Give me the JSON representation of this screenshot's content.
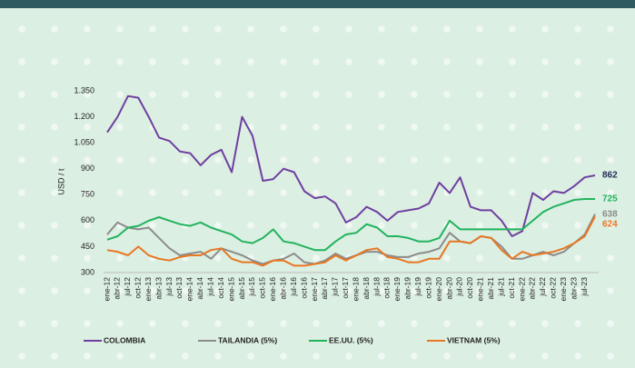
{
  "chart_data": {
    "type": "line",
    "y_label": "USD / t",
    "categories": [
      "ene-12",
      "abr-12",
      "jul-12",
      "oct-12",
      "ene-13",
      "abr-13",
      "jul-13",
      "oct-13",
      "ene-14",
      "abr-14",
      "jul-14",
      "oct-14",
      "ene-15",
      "abr-15",
      "jul-15",
      "oct-15",
      "ene-16",
      "abr-16",
      "jul-16",
      "oct-16",
      "ene-17",
      "abr-17",
      "jul-17",
      "oct-17",
      "ene-18",
      "abr-18",
      "jul-18",
      "oct-18",
      "ene-19",
      "abr-19",
      "jul-19",
      "oct-19",
      "ene-20",
      "abr-20",
      "jul-20",
      "oct-20",
      "ene-21",
      "abr-21",
      "jul-21",
      "oct-21",
      "ene-22",
      "abr-22",
      "jul-22",
      "oct-22",
      "ene-23",
      "abr-23",
      "jul-23",
      null
    ],
    "ylim": [
      300,
      1350
    ],
    "yticks": [
      300,
      450,
      600,
      750,
      900,
      {
        "value": 1050,
        "label": "1.050"
      },
      {
        "value": 1200,
        "label": "1.200"
      },
      {
        "value": 1350,
        "label": "1.350"
      }
    ],
    "series": [
      {
        "name": "COLOMBIA",
        "color": "#6f3fa0",
        "label_color": "#1f2d5a",
        "values": [
          1110,
          1200,
          1320,
          1310,
          1200,
          1080,
          1060,
          1000,
          990,
          920,
          980,
          1010,
          880,
          1200,
          1090,
          830,
          840,
          900,
          880,
          770,
          730,
          740,
          700,
          590,
          620,
          680,
          650,
          600,
          650,
          660,
          670,
          700,
          820,
          760,
          850,
          680,
          660,
          660,
          600,
          510,
          540,
          760,
          720,
          770,
          760,
          800,
          850,
          862
        ]
      },
      {
        "name": "TAILANDIA (5%)",
        "color": "#8c8c8c",
        "label_color": "#8c8c8c",
        "values": [
          520,
          590,
          560,
          550,
          560,
          500,
          440,
          400,
          410,
          420,
          380,
          440,
          420,
          400,
          370,
          350,
          370,
          380,
          410,
          360,
          350,
          370,
          410,
          380,
          400,
          420,
          420,
          400,
          390,
          390,
          410,
          420,
          440,
          530,
          480,
          470,
          510,
          500,
          450,
          380,
          380,
          400,
          420,
          400,
          420,
          470,
          520,
          638
        ]
      },
      {
        "name": "EE.UU. (5%)",
        "color": "#22b35e",
        "label_color": "#22b35e",
        "values": [
          490,
          510,
          560,
          570,
          600,
          620,
          600,
          580,
          570,
          590,
          560,
          540,
          520,
          480,
          470,
          500,
          550,
          480,
          470,
          450,
          430,
          430,
          480,
          520,
          530,
          580,
          560,
          510,
          510,
          500,
          480,
          480,
          500,
          600,
          550,
          550,
          550,
          550,
          550,
          550,
          550,
          600,
          650,
          680,
          700,
          720,
          725,
          725
        ]
      },
      {
        "name": "VIETNAM (5%)",
        "color": "#e87722",
        "label_color": "#e87722",
        "values": [
          430,
          420,
          400,
          450,
          400,
          380,
          370,
          390,
          400,
          400,
          430,
          440,
          380,
          360,
          360,
          340,
          370,
          370,
          340,
          340,
          350,
          360,
          400,
          370,
          400,
          430,
          440,
          390,
          380,
          360,
          360,
          380,
          380,
          480,
          480,
          470,
          510,
          500,
          430,
          380,
          420,
          400,
          410,
          420,
          440,
          470,
          510,
          624
        ]
      }
    ]
  }
}
